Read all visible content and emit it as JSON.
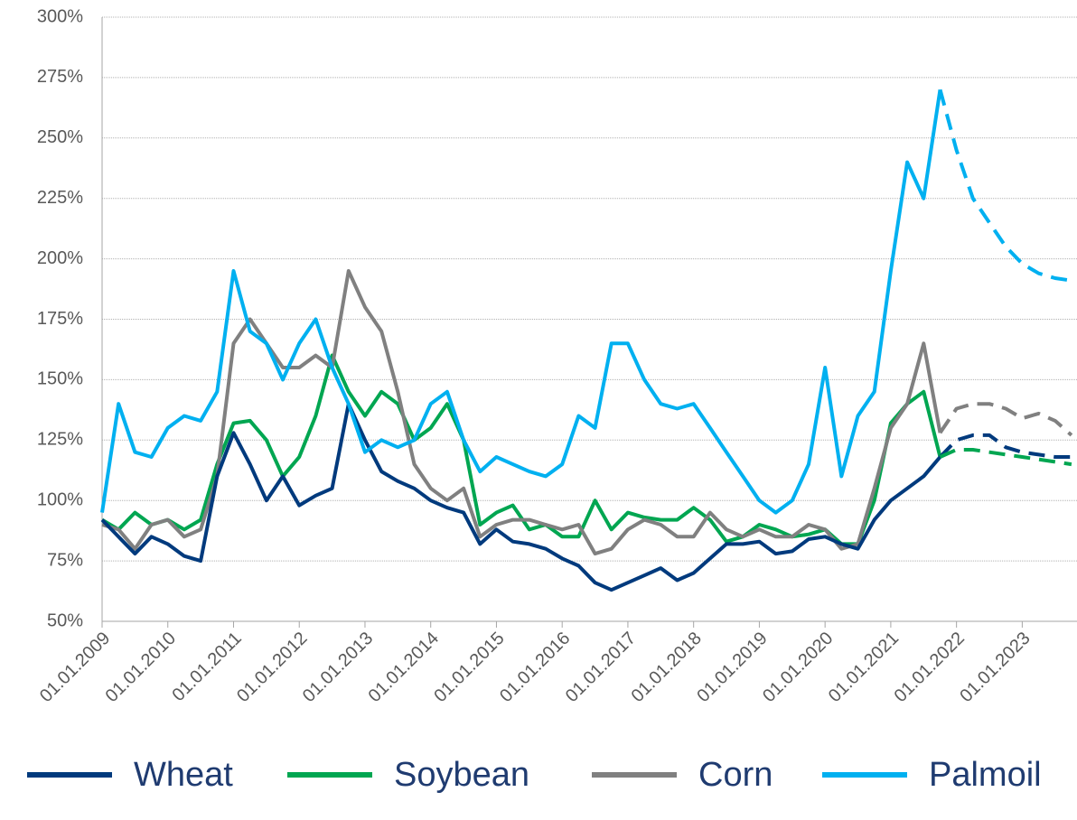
{
  "chart_data": {
    "type": "line",
    "x": [
      "01.01.2009",
      "01.04.2009",
      "01.07.2009",
      "01.10.2009",
      "01.01.2010",
      "01.04.2010",
      "01.07.2010",
      "01.10.2010",
      "01.01.2011",
      "01.04.2011",
      "01.07.2011",
      "01.10.2011",
      "01.01.2012",
      "01.04.2012",
      "01.07.2012",
      "01.10.2012",
      "01.01.2013",
      "01.04.2013",
      "01.07.2013",
      "01.10.2013",
      "01.01.2014",
      "01.04.2014",
      "01.07.2014",
      "01.10.2014",
      "01.01.2015",
      "01.04.2015",
      "01.07.2015",
      "01.10.2015",
      "01.01.2016",
      "01.04.2016",
      "01.07.2016",
      "01.10.2016",
      "01.01.2017",
      "01.04.2017",
      "01.07.2017",
      "01.10.2017",
      "01.01.2018",
      "01.04.2018",
      "01.07.2018",
      "01.10.2018",
      "01.01.2019",
      "01.04.2019",
      "01.07.2019",
      "01.10.2019",
      "01.01.2020",
      "01.04.2020",
      "01.07.2020",
      "01.10.2020",
      "01.01.2021",
      "01.04.2021",
      "01.07.2021",
      "01.10.2021",
      "01.01.2022",
      "01.04.2022",
      "01.07.2022",
      "01.10.2022",
      "01.01.2023",
      "01.04.2023",
      "01.07.2023",
      "01.10.2023"
    ],
    "series": [
      {
        "name": "Wheat",
        "color": "#003a7d",
        "values": [
          92,
          85,
          78,
          85,
          82,
          77,
          75,
          110,
          128,
          115,
          100,
          110,
          98,
          102,
          105,
          140,
          125,
          112,
          108,
          105,
          100,
          97,
          95,
          82,
          88,
          83,
          82,
          80,
          76,
          73,
          66,
          63,
          66,
          69,
          72,
          67,
          70,
          76,
          82,
          82,
          83,
          78,
          79,
          84,
          85,
          82,
          80,
          92,
          100,
          105,
          110,
          118,
          null,
          null,
          null,
          null,
          null,
          null,
          null,
          null
        ],
        "forecast": [
          null,
          null,
          null,
          null,
          null,
          null,
          null,
          null,
          null,
          null,
          null,
          null,
          null,
          null,
          null,
          null,
          null,
          null,
          null,
          null,
          null,
          null,
          null,
          null,
          null,
          null,
          null,
          null,
          null,
          null,
          null,
          null,
          null,
          null,
          null,
          null,
          null,
          null,
          null,
          null,
          null,
          null,
          null,
          null,
          null,
          null,
          null,
          null,
          null,
          null,
          null,
          118,
          125,
          127,
          127,
          122,
          120,
          119,
          118,
          118
        ]
      },
      {
        "name": "Soybean",
        "color": "#00a651",
        "values": [
          92,
          88,
          95,
          90,
          92,
          88,
          92,
          115,
          132,
          133,
          125,
          110,
          118,
          135,
          160,
          145,
          135,
          145,
          140,
          125,
          130,
          140,
          125,
          90,
          95,
          98,
          88,
          90,
          85,
          85,
          100,
          88,
          95,
          93,
          92,
          92,
          97,
          92,
          83,
          85,
          90,
          88,
          85,
          86,
          88,
          82,
          82,
          100,
          132,
          140,
          145,
          118,
          null,
          null,
          null,
          null,
          null,
          null,
          null,
          null
        ],
        "forecast": [
          null,
          null,
          null,
          null,
          null,
          null,
          null,
          null,
          null,
          null,
          null,
          null,
          null,
          null,
          null,
          null,
          null,
          null,
          null,
          null,
          null,
          null,
          null,
          null,
          null,
          null,
          null,
          null,
          null,
          null,
          null,
          null,
          null,
          null,
          null,
          null,
          null,
          null,
          null,
          null,
          null,
          null,
          null,
          null,
          null,
          null,
          null,
          null,
          null,
          null,
          null,
          118,
          121,
          121,
          120,
          119,
          118,
          117,
          116,
          115
        ]
      },
      {
        "name": "Corn",
        "color": "#808080",
        "values": [
          90,
          88,
          80,
          90,
          92,
          85,
          88,
          110,
          165,
          175,
          165,
          155,
          155,
          160,
          155,
          195,
          180,
          170,
          145,
          115,
          105,
          100,
          105,
          85,
          90,
          92,
          92,
          90,
          88,
          90,
          78,
          80,
          88,
          92,
          90,
          85,
          85,
          95,
          88,
          85,
          88,
          85,
          85,
          90,
          88,
          80,
          82,
          105,
          130,
          140,
          165,
          128,
          null,
          null,
          null,
          null,
          null,
          null,
          null,
          null
        ],
        "forecast": [
          null,
          null,
          null,
          null,
          null,
          null,
          null,
          null,
          null,
          null,
          null,
          null,
          null,
          null,
          null,
          null,
          null,
          null,
          null,
          null,
          null,
          null,
          null,
          null,
          null,
          null,
          null,
          null,
          null,
          null,
          null,
          null,
          null,
          null,
          null,
          null,
          null,
          null,
          null,
          null,
          null,
          null,
          null,
          null,
          null,
          null,
          null,
          null,
          null,
          null,
          null,
          128,
          138,
          140,
          140,
          138,
          134,
          136,
          133,
          127
        ]
      },
      {
        "name": "Palmoil",
        "color": "#00b0f0",
        "values": [
          95,
          140,
          120,
          118,
          130,
          135,
          133,
          145,
          195,
          170,
          165,
          150,
          165,
          175,
          155,
          140,
          120,
          125,
          122,
          125,
          140,
          145,
          125,
          112,
          118,
          115,
          112,
          110,
          115,
          135,
          130,
          165,
          165,
          150,
          140,
          138,
          140,
          130,
          120,
          110,
          100,
          95,
          100,
          115,
          155,
          110,
          135,
          145,
          195,
          240,
          225,
          270,
          null,
          null,
          null,
          null,
          null,
          null,
          null,
          null
        ],
        "forecast": [
          null,
          null,
          null,
          null,
          null,
          null,
          null,
          null,
          null,
          null,
          null,
          null,
          null,
          null,
          null,
          null,
          null,
          null,
          null,
          null,
          null,
          null,
          null,
          null,
          null,
          null,
          null,
          null,
          null,
          null,
          null,
          null,
          null,
          null,
          null,
          null,
          null,
          null,
          null,
          null,
          null,
          null,
          null,
          null,
          null,
          null,
          null,
          null,
          null,
          null,
          null,
          270,
          245,
          225,
          215,
          205,
          198,
          194,
          192,
          191
        ]
      }
    ],
    "xlim": [
      "01.01.2009",
      "01.11.2023"
    ],
    "xticks": [
      "01.01.2009",
      "01.01.2010",
      "01.01.2011",
      "01.01.2012",
      "01.01.2013",
      "01.01.2014",
      "01.01.2015",
      "01.01.2016",
      "01.01.2017",
      "01.01.2018",
      "01.01.2019",
      "01.01.2020",
      "01.01.2021",
      "01.01.2022",
      "01.01.2023"
    ],
    "ylim": [
      50,
      300
    ],
    "yticks": [
      {
        "value": 50,
        "label": "50%"
      },
      {
        "value": 75,
        "label": "75%"
      },
      {
        "value": 100,
        "label": "100%"
      },
      {
        "value": 125,
        "label": "125%"
      },
      {
        "value": 150,
        "label": "150%"
      },
      {
        "value": 175,
        "label": "175%"
      },
      {
        "value": 200,
        "label": "200%"
      },
      {
        "value": 225,
        "label": "225%"
      },
      {
        "value": 250,
        "label": "250%"
      },
      {
        "value": 275,
        "label": "275%"
      },
      {
        "value": 300,
        "label": "300%"
      }
    ],
    "grid": true,
    "legend": "bottom"
  }
}
